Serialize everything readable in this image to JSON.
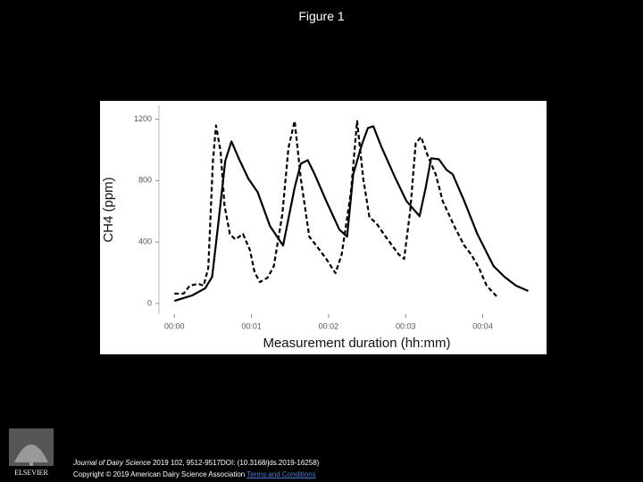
{
  "header": {
    "title": "Figure 1"
  },
  "chart_data": {
    "type": "line",
    "y_label": "CH4 (ppm)",
    "x_label": "Measurement duration (hh:mm)",
    "xlim": [
      -0.2,
      4.7
    ],
    "ylim": [
      -70,
      1290
    ],
    "xticks": [
      {
        "value": 0,
        "label": "00:00"
      },
      {
        "value": 1,
        "label": "00:01"
      },
      {
        "value": 2,
        "label": "00:02"
      },
      {
        "value": 3,
        "label": "00:03"
      },
      {
        "value": 4,
        "label": "00:04"
      }
    ],
    "yticks": [
      0,
      400,
      800,
      1200
    ],
    "grid": false,
    "series": [
      {
        "color": "#000000",
        "line_style": "solid",
        "x": [
          0,
          0.23,
          0.4,
          0.49,
          0.57,
          0.66,
          0.74,
          0.84,
          0.96,
          1.08,
          1.24,
          1.41,
          1.56,
          1.64,
          1.73,
          1.82,
          1.97,
          2.14,
          2.24,
          2.32,
          2.43,
          2.51,
          2.58,
          2.69,
          2.86,
          3.01,
          3.16,
          3.18,
          3.26,
          3.33,
          3.43,
          3.53,
          3.61,
          3.76,
          3.93,
          4.14,
          4.28,
          4.43,
          4.59
        ],
        "values": [
          17,
          52,
          99,
          174,
          522,
          928,
          1055,
          939,
          812,
          725,
          504,
          377,
          754,
          910,
          933,
          841,
          667,
          481,
          435,
          841,
          1032,
          1142,
          1154,
          1014,
          823,
          667,
          580,
          568,
          754,
          945,
          939,
          870,
          841,
          667,
          452,
          243,
          174,
          116,
          81
        ]
      },
      {
        "color": "#000000",
        "line_style": "dashed",
        "x": [
          0,
          0.12,
          0.2,
          0.31,
          0.38,
          0.44,
          0.5,
          0.54,
          0.6,
          0.65,
          0.72,
          0.79,
          0.89,
          0.98,
          1.04,
          1.11,
          1.21,
          1.29,
          1.4,
          1.48,
          1.56,
          1.64,
          1.75,
          1.84,
          1.97,
          2.09,
          2.17,
          2.29,
          2.37,
          2.45,
          2.53,
          2.62,
          2.74,
          2.91,
          2.98,
          3.06,
          3.13,
          3.2,
          3.29,
          3.39,
          3.48,
          3.64,
          3.76,
          3.85,
          3.95,
          4.05,
          4.18
        ],
        "values": [
          64,
          64,
          116,
          128,
          116,
          232,
          928,
          1159,
          986,
          638,
          452,
          417,
          452,
          348,
          203,
          139,
          168,
          243,
          580,
          1014,
          1188,
          812,
          435,
          377,
          290,
          197,
          319,
          725,
          1188,
          812,
          562,
          522,
          435,
          319,
          290,
          609,
          1043,
          1084,
          957,
          841,
          667,
          493,
          377,
          319,
          232,
          116,
          46
        ]
      }
    ]
  },
  "footer": {
    "logo_text": "ELSEVIER",
    "journal": "Journal of Dairy Science",
    "citation": " 2019 102, 9512-9517DOI: (10.3168/jds.2019-16258)",
    "copyright": "Copyright © 2019 American Dairy Science Association ",
    "link": "Terms and Conditions"
  }
}
